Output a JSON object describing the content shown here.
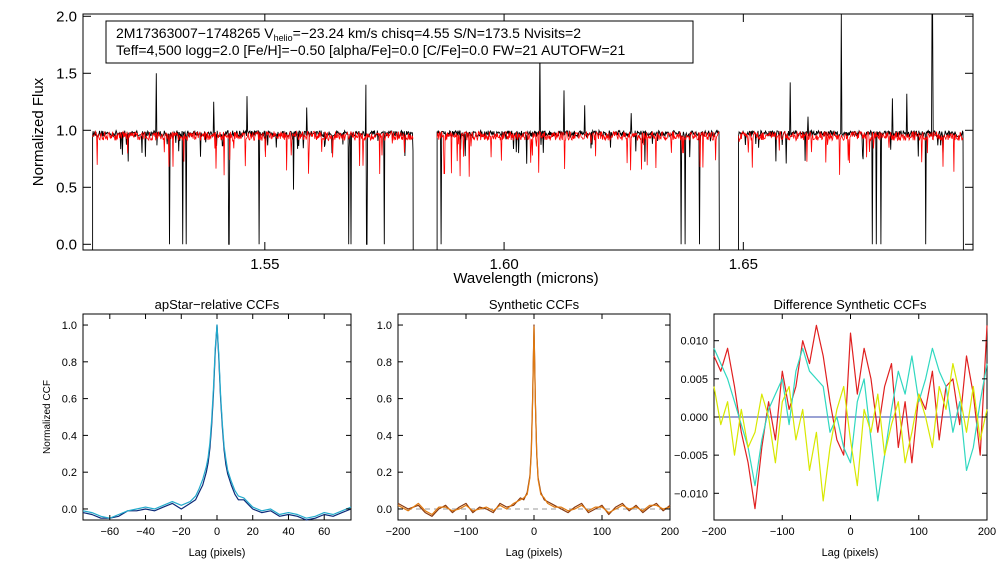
{
  "chart_data": [
    {
      "type": "line",
      "title": "",
      "xlabel": "Wavelength (microns)",
      "ylabel": "Normalized Flux",
      "xlim": [
        1.512,
        1.698
      ],
      "ylim": [
        -0.05,
        2.02
      ],
      "xticks": [
        {
          "value": 1.55,
          "label": "1.55"
        },
        {
          "value": 1.6,
          "label": "1.60"
        },
        {
          "value": 1.65,
          "label": "1.65"
        }
      ],
      "yticks": [
        {
          "value": 0.0,
          "label": "0.0"
        },
        {
          "value": 0.5,
          "label": "0.5"
        },
        {
          "value": 1.0,
          "label": "1.0"
        },
        {
          "value": 1.5,
          "label": "1.5"
        },
        {
          "value": 2.0,
          "label": "2.0"
        }
      ],
      "info_box": {
        "line1_a": "2M17363007−1748265  V",
        "line1_sub": "helio",
        "line1_b": "=−23.24 km/s  chisq=4.55  S/N=173.5  Nvisits=2",
        "line2": "Teff=4,500 logg=2.0 [Fe/H]=−0.50 [alpha/Fe]=0.0 [C/Fe]=0.0 FW=21 AUTOFW=21"
      },
      "chips": [
        [
          1.514,
          1.581
        ],
        [
          1.586,
          1.645
        ],
        [
          1.649,
          1.696
        ]
      ],
      "series": [
        {
          "name": "observed",
          "color": "#000000",
          "baseline": 0.97,
          "noise": 0.028,
          "spikes": [
            [
              1.5301,
              0.0
            ],
            [
              1.5328,
              0.0
            ],
            [
              1.5336,
              0.0
            ],
            [
              1.5425,
              0.0
            ],
            [
              1.5488,
              0.0
            ],
            [
              1.556,
              0.48
            ],
            [
              1.5675,
              0.0
            ],
            [
              1.568,
              0.0
            ],
            [
              1.5713,
              0.0
            ],
            [
              1.575,
              0.0
            ],
            [
              1.5868,
              0.0
            ],
            [
              1.637,
              0.0
            ],
            [
              1.6378,
              0.0
            ],
            [
              1.6408,
              0.0
            ],
            [
              1.6485,
              0.0
            ],
            [
              1.677,
              0.0
            ],
            [
              1.6778,
              0.0
            ],
            [
              1.6788,
              0.0
            ],
            [
              1.6881,
              0.0
            ],
            [
              1.5273,
              1.5
            ],
            [
              1.5393,
              1.25
            ],
            [
              1.5463,
              1.3
            ],
            [
              1.5588,
              1.2
            ],
            [
              1.5711,
              1.4
            ],
            [
              1.6075,
              1.72
            ],
            [
              1.6125,
              1.35
            ],
            [
              1.6168,
              1.22
            ],
            [
              1.6266,
              1.15
            ],
            [
              1.6598,
              1.42
            ],
            [
              1.6705,
              2.02
            ],
            [
              1.6812,
              1.28
            ],
            [
              1.6842,
              1.32
            ],
            [
              1.6895,
              2.02
            ],
            [
              1.6635,
              1.12
            ]
          ]
        },
        {
          "name": "model",
          "color": "#ff0000",
          "baseline": 0.95,
          "noise": 0.04,
          "spikes": [
            [
              1.53,
              0.68
            ],
            [
              1.5427,
              0.74
            ],
            [
              1.5555,
              0.78
            ],
            [
              1.5745,
              0.78
            ],
            [
              1.5875,
              0.62
            ],
            [
              1.6372,
              0.8
            ],
            [
              1.6375,
              0.8
            ],
            [
              1.6772,
              0.84
            ],
            [
              1.6885,
              0.8
            ]
          ]
        }
      ]
    },
    {
      "type": "line",
      "title": "apStar−relative CCFs",
      "xlabel": "Lag (pixels)",
      "ylabel": "Normalized CCF",
      "xlim": [
        -75,
        75
      ],
      "ylim": [
        -0.06,
        1.06
      ],
      "xticks": [
        {
          "value": -60,
          "label": "−60"
        },
        {
          "value": -40,
          "label": "−40"
        },
        {
          "value": -20,
          "label": "−20"
        },
        {
          "value": 0,
          "label": "0"
        },
        {
          "value": 20,
          "label": "20"
        },
        {
          "value": 40,
          "label": "40"
        },
        {
          "value": 60,
          "label": "60"
        }
      ],
      "yticks": [
        {
          "value": 0.0,
          "label": "0.0"
        },
        {
          "value": 0.2,
          "label": "0.2"
        },
        {
          "value": 0.4,
          "label": "0.4"
        },
        {
          "value": 0.6,
          "label": "0.6"
        },
        {
          "value": 0.8,
          "label": "0.8"
        },
        {
          "value": 1.0,
          "label": "1.0"
        }
      ],
      "series": [
        {
          "name": "ccf_dark",
          "color": "#0b2a78",
          "peak": 1.0,
          "x": [
            -75,
            -70,
            -65,
            -60,
            -55,
            -50,
            -45,
            -40,
            -35,
            -30,
            -25,
            -20,
            -15,
            -12,
            -10,
            -8,
            -6,
            -5,
            -4,
            -3,
            -2,
            -1,
            0,
            1,
            2,
            3,
            4,
            5,
            6,
            8,
            10,
            12,
            15,
            20,
            25,
            30,
            35,
            40,
            45,
            50,
            55,
            60,
            65,
            70,
            75
          ],
          "y": [
            -0.02,
            -0.03,
            -0.05,
            -0.05,
            -0.04,
            -0.01,
            -0.01,
            0.0,
            -0.01,
            0.01,
            0.03,
            0.0,
            0.03,
            0.05,
            0.09,
            0.13,
            0.2,
            0.25,
            0.33,
            0.45,
            0.62,
            0.85,
            1.0,
            0.82,
            0.6,
            0.44,
            0.32,
            0.24,
            0.19,
            0.13,
            0.08,
            0.05,
            0.05,
            0.0,
            -0.02,
            -0.01,
            -0.04,
            -0.03,
            -0.04,
            -0.06,
            -0.05,
            -0.03,
            -0.04,
            -0.02,
            0.0
          ]
        },
        {
          "name": "ccf_cyan",
          "color": "#22aacc",
          "x": [
            -75,
            -70,
            -65,
            -60,
            -55,
            -50,
            -45,
            -40,
            -35,
            -30,
            -25,
            -20,
            -15,
            -12,
            -10,
            -8,
            -6,
            -5,
            -4,
            -3,
            -2,
            -1,
            0,
            1,
            2,
            3,
            4,
            5,
            6,
            8,
            10,
            12,
            15,
            20,
            25,
            30,
            35,
            40,
            45,
            50,
            55,
            60,
            65,
            70,
            75
          ],
          "y": [
            -0.01,
            -0.02,
            -0.04,
            -0.05,
            -0.03,
            -0.01,
            0.0,
            0.01,
            0.0,
            0.02,
            0.04,
            0.02,
            0.04,
            0.07,
            0.11,
            0.16,
            0.23,
            0.28,
            0.36,
            0.48,
            0.65,
            0.87,
            1.0,
            0.84,
            0.62,
            0.46,
            0.34,
            0.27,
            0.21,
            0.15,
            0.1,
            0.07,
            0.06,
            0.01,
            -0.01,
            0.0,
            -0.03,
            -0.02,
            -0.03,
            -0.05,
            -0.04,
            -0.02,
            -0.03,
            -0.01,
            0.01
          ]
        }
      ]
    },
    {
      "type": "line",
      "title": "Synthetic CCFs",
      "xlabel": "Lag (pixels)",
      "ylabel": "",
      "xlim": [
        -200,
        200
      ],
      "ylim": [
        -0.06,
        1.06
      ],
      "xticks": [
        {
          "value": -200,
          "label": "−200"
        },
        {
          "value": -100,
          "label": "−100"
        },
        {
          "value": 0,
          "label": "0"
        },
        {
          "value": 100,
          "label": "100"
        },
        {
          "value": 200,
          "label": "200"
        }
      ],
      "yticks": [
        {
          "value": 0.0,
          "label": "0.0"
        },
        {
          "value": 0.2,
          "label": "0.2"
        },
        {
          "value": 0.4,
          "label": "0.4"
        },
        {
          "value": 0.6,
          "label": "0.6"
        },
        {
          "value": 0.8,
          "label": "0.8"
        },
        {
          "value": 1.0,
          "label": "1.0"
        }
      ],
      "zero_line": true,
      "series": [
        {
          "name": "synth_brown",
          "color": "#8b3a0e",
          "x": [
            -200,
            -185,
            -170,
            -160,
            -150,
            -140,
            -130,
            -120,
            -110,
            -100,
            -90,
            -80,
            -70,
            -60,
            -50,
            -40,
            -30,
            -20,
            -15,
            -10,
            -6,
            -4,
            -2,
            0,
            2,
            4,
            6,
            10,
            15,
            20,
            30,
            40,
            50,
            60,
            70,
            80,
            90,
            100,
            110,
            120,
            130,
            140,
            150,
            160,
            170,
            180,
            190,
            200
          ],
          "y": [
            0.03,
            0.0,
            0.02,
            -0.02,
            -0.04,
            0.0,
            0.02,
            -0.02,
            0.01,
            0.03,
            -0.02,
            0.01,
            0.0,
            -0.02,
            0.03,
            0.01,
            0.02,
            0.06,
            0.05,
            0.09,
            0.18,
            0.32,
            0.6,
            1.0,
            0.58,
            0.3,
            0.17,
            0.09,
            0.05,
            0.04,
            0.02,
            0.0,
            -0.02,
            0.01,
            0.03,
            -0.02,
            0.0,
            0.02,
            -0.03,
            0.01,
            0.03,
            -0.01,
            0.02,
            -0.02,
            0.01,
            0.03,
            -0.01,
            0.02
          ]
        },
        {
          "name": "synth_orange",
          "color": "#e07a10",
          "x": [
            -200,
            -185,
            -170,
            -160,
            -150,
            -140,
            -130,
            -120,
            -110,
            -100,
            -90,
            -80,
            -70,
            -60,
            -50,
            -40,
            -30,
            -20,
            -15,
            -10,
            -6,
            -4,
            -2,
            0,
            2,
            4,
            6,
            10,
            15,
            20,
            30,
            40,
            50,
            60,
            70,
            80,
            90,
            100,
            110,
            120,
            130,
            140,
            150,
            160,
            170,
            180,
            190,
            200
          ],
          "y": [
            0.02,
            -0.01,
            0.03,
            -0.01,
            -0.03,
            0.01,
            0.01,
            -0.01,
            0.0,
            0.02,
            -0.01,
            0.0,
            0.01,
            -0.01,
            0.02,
            0.0,
            0.03,
            0.05,
            0.06,
            0.08,
            0.17,
            0.3,
            0.58,
            0.99,
            0.57,
            0.31,
            0.16,
            0.08,
            0.06,
            0.03,
            0.01,
            0.01,
            -0.01,
            0.0,
            0.02,
            -0.01,
            0.01,
            0.01,
            -0.02,
            0.0,
            0.02,
            0.0,
            0.01,
            -0.01,
            0.02,
            0.02,
            0.0,
            0.01
          ]
        }
      ]
    },
    {
      "type": "line",
      "title": "Difference Synthetic CCFs",
      "xlabel": "Lag (pixels)",
      "ylabel": "",
      "xlim": [
        -200,
        200
      ],
      "ylim": [
        -0.0135,
        0.0135
      ],
      "xticks": [
        {
          "value": -200,
          "label": "−200"
        },
        {
          "value": -100,
          "label": "−100"
        },
        {
          "value": 0,
          "label": "0"
        },
        {
          "value": 100,
          "label": "100"
        },
        {
          "value": 200,
          "label": "200"
        }
      ],
      "yticks": [
        {
          "value": -0.01,
          "label": "−0.010"
        },
        {
          "value": -0.005,
          "label": "−0.005"
        },
        {
          "value": 0.0,
          "label": "0.000"
        },
        {
          "value": 0.005,
          "label": "0.005"
        },
        {
          "value": 0.01,
          "label": "0.010"
        }
      ],
      "zero_line": true,
      "zero_color": "#3344aa",
      "series": [
        {
          "name": "diff_red",
          "color": "#e02020",
          "x": [
            -200,
            -190,
            -180,
            -170,
            -160,
            -150,
            -140,
            -130,
            -120,
            -110,
            -100,
            -90,
            -80,
            -70,
            -60,
            -50,
            -40,
            -30,
            -20,
            -10,
            0,
            10,
            20,
            30,
            40,
            50,
            60,
            70,
            80,
            90,
            100,
            110,
            120,
            130,
            140,
            150,
            160,
            170,
            180,
            190,
            200
          ],
          "y": [
            0.008,
            0.006,
            0.009,
            0.004,
            -0.002,
            -0.006,
            -0.012,
            -0.004,
            0.002,
            -0.003,
            0.006,
            0.001,
            0.004,
            0.01,
            0.007,
            0.012,
            0.008,
            0.002,
            -0.003,
            -0.005,
            0.011,
            0.003,
            0.009,
            0.005,
            -0.002,
            0.004,
            0.007,
            -0.004,
            0.002,
            -0.006,
            0.003,
            0.001,
            0.006,
            -0.003,
            0.004,
            0.005,
            -0.001,
            0.008,
            0.003,
            -0.005,
            0.012
          ]
        },
        {
          "name": "diff_cyan",
          "color": "#30d8c0",
          "x": [
            -200,
            -190,
            -180,
            -170,
            -160,
            -150,
            -140,
            -130,
            -120,
            -110,
            -100,
            -90,
            -80,
            -70,
            -60,
            -50,
            -40,
            -30,
            -20,
            -10,
            0,
            10,
            20,
            30,
            40,
            50,
            60,
            70,
            80,
            90,
            100,
            110,
            120,
            130,
            140,
            150,
            160,
            170,
            180,
            190,
            200
          ],
          "y": [
            0.009,
            0.007,
            0.005,
            0.002,
            -0.001,
            -0.004,
            -0.009,
            -0.003,
            0.001,
            0.003,
            0.005,
            -0.001,
            0.006,
            0.009,
            0.006,
            0.005,
            0.004,
            -0.002,
            0.0,
            -0.004,
            -0.006,
            0.002,
            0.005,
            -0.003,
            -0.011,
            -0.005,
            0.001,
            0.006,
            0.003,
            0.008,
            0.002,
            0.005,
            0.009,
            0.006,
            0.004,
            -0.002,
            0.002,
            -0.007,
            -0.004,
            0.002,
            0.007
          ]
        },
        {
          "name": "diff_yellow",
          "color": "#d8e800",
          "x": [
            -200,
            -190,
            -180,
            -170,
            -160,
            -150,
            -140,
            -130,
            -120,
            -110,
            -100,
            -90,
            -80,
            -70,
            -60,
            -50,
            -40,
            -30,
            -20,
            -10,
            0,
            10,
            20,
            30,
            40,
            50,
            60,
            70,
            80,
            90,
            100,
            110,
            120,
            130,
            140,
            150,
            160,
            170,
            180,
            190,
            200
          ],
          "y": [
            0.004,
            -0.001,
            0.002,
            -0.005,
            0.001,
            -0.004,
            -0.002,
            0.003,
            0.0,
            -0.006,
            0.002,
            0.004,
            -0.003,
            0.001,
            -0.007,
            -0.002,
            -0.011,
            -0.004,
            0.001,
            0.004,
            -0.003,
            -0.009,
            0.001,
            -0.002,
            0.003,
            -0.005,
            -0.001,
            0.002,
            -0.006,
            -0.002,
            0.003,
            0.0,
            -0.004,
            0.004,
            0.001,
            0.007,
            0.003,
            -0.002,
            0.004,
            -0.003,
            0.001
          ]
        }
      ]
    }
  ]
}
